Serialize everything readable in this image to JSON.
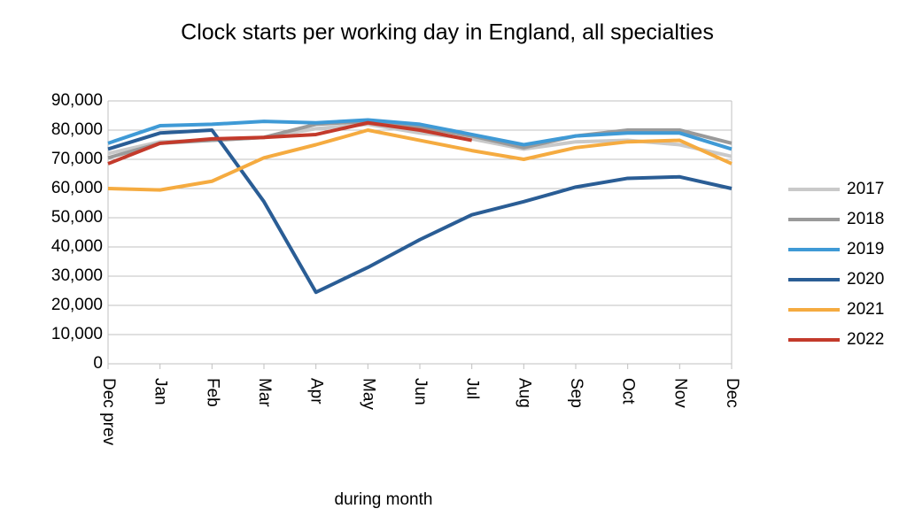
{
  "chart_data": {
    "type": "line",
    "title": "Clock starts per working day in England, all specialties",
    "xlabel": "during  month",
    "categories": [
      "Dec prev",
      "Jan",
      "Feb",
      "Mar",
      "Apr",
      "May",
      "Jun",
      "Jul",
      "Aug",
      "Sep",
      "Oct",
      "Nov",
      "Dec"
    ],
    "series": [
      {
        "name": "2017",
        "color": "#c9c9c9",
        "values": [
          72000,
          76000,
          76500,
          77500,
          80500,
          82000,
          79000,
          77000,
          73500,
          76000,
          76500,
          75000,
          71000
        ]
      },
      {
        "name": "2018",
        "color": "#9a9a9a",
        "values": [
          70500,
          75500,
          76500,
          77500,
          82000,
          83000,
          81000,
          78000,
          74000,
          78000,
          80000,
          80000,
          75500
        ]
      },
      {
        "name": "2019",
        "color": "#3f9ad6",
        "values": [
          75500,
          81500,
          82000,
          83000,
          82500,
          83500,
          82000,
          78500,
          75000,
          78000,
          79000,
          79000,
          73500
        ]
      },
      {
        "name": "2020",
        "color": "#2a5d95",
        "values": [
          73500,
          79000,
          80000,
          55500,
          24500,
          33000,
          42500,
          51000,
          55500,
          60500,
          63500,
          64000,
          60000
        ]
      },
      {
        "name": "2021",
        "color": "#f5ab40",
        "values": [
          60000,
          59500,
          62500,
          70500,
          75000,
          80000,
          76500,
          73000,
          70000,
          74000,
          76000,
          76500,
          68500
        ]
      },
      {
        "name": "2022",
        "color": "#c33a2b",
        "values": [
          68500,
          75500,
          77000,
          77500,
          78500,
          82500,
          80000,
          76500,
          null,
          null,
          null,
          null,
          null
        ]
      }
    ],
    "ylim": [
      0,
      90000
    ],
    "yticks": [
      0,
      {
        "value": 10000,
        "label": "10,000"
      },
      {
        "value": 20000,
        "label": "20,000"
      },
      {
        "value": 30000,
        "label": "30,000"
      },
      {
        "value": 40000,
        "label": "40,000"
      },
      {
        "value": 50000,
        "label": "50,000"
      },
      {
        "value": 60000,
        "label": "60,000"
      },
      {
        "value": 70000,
        "label": "70,000"
      },
      {
        "value": 80000,
        "label": "80,000"
      },
      {
        "value": 90000,
        "label": "90,000"
      }
    ],
    "grid": true,
    "legend": "right"
  }
}
